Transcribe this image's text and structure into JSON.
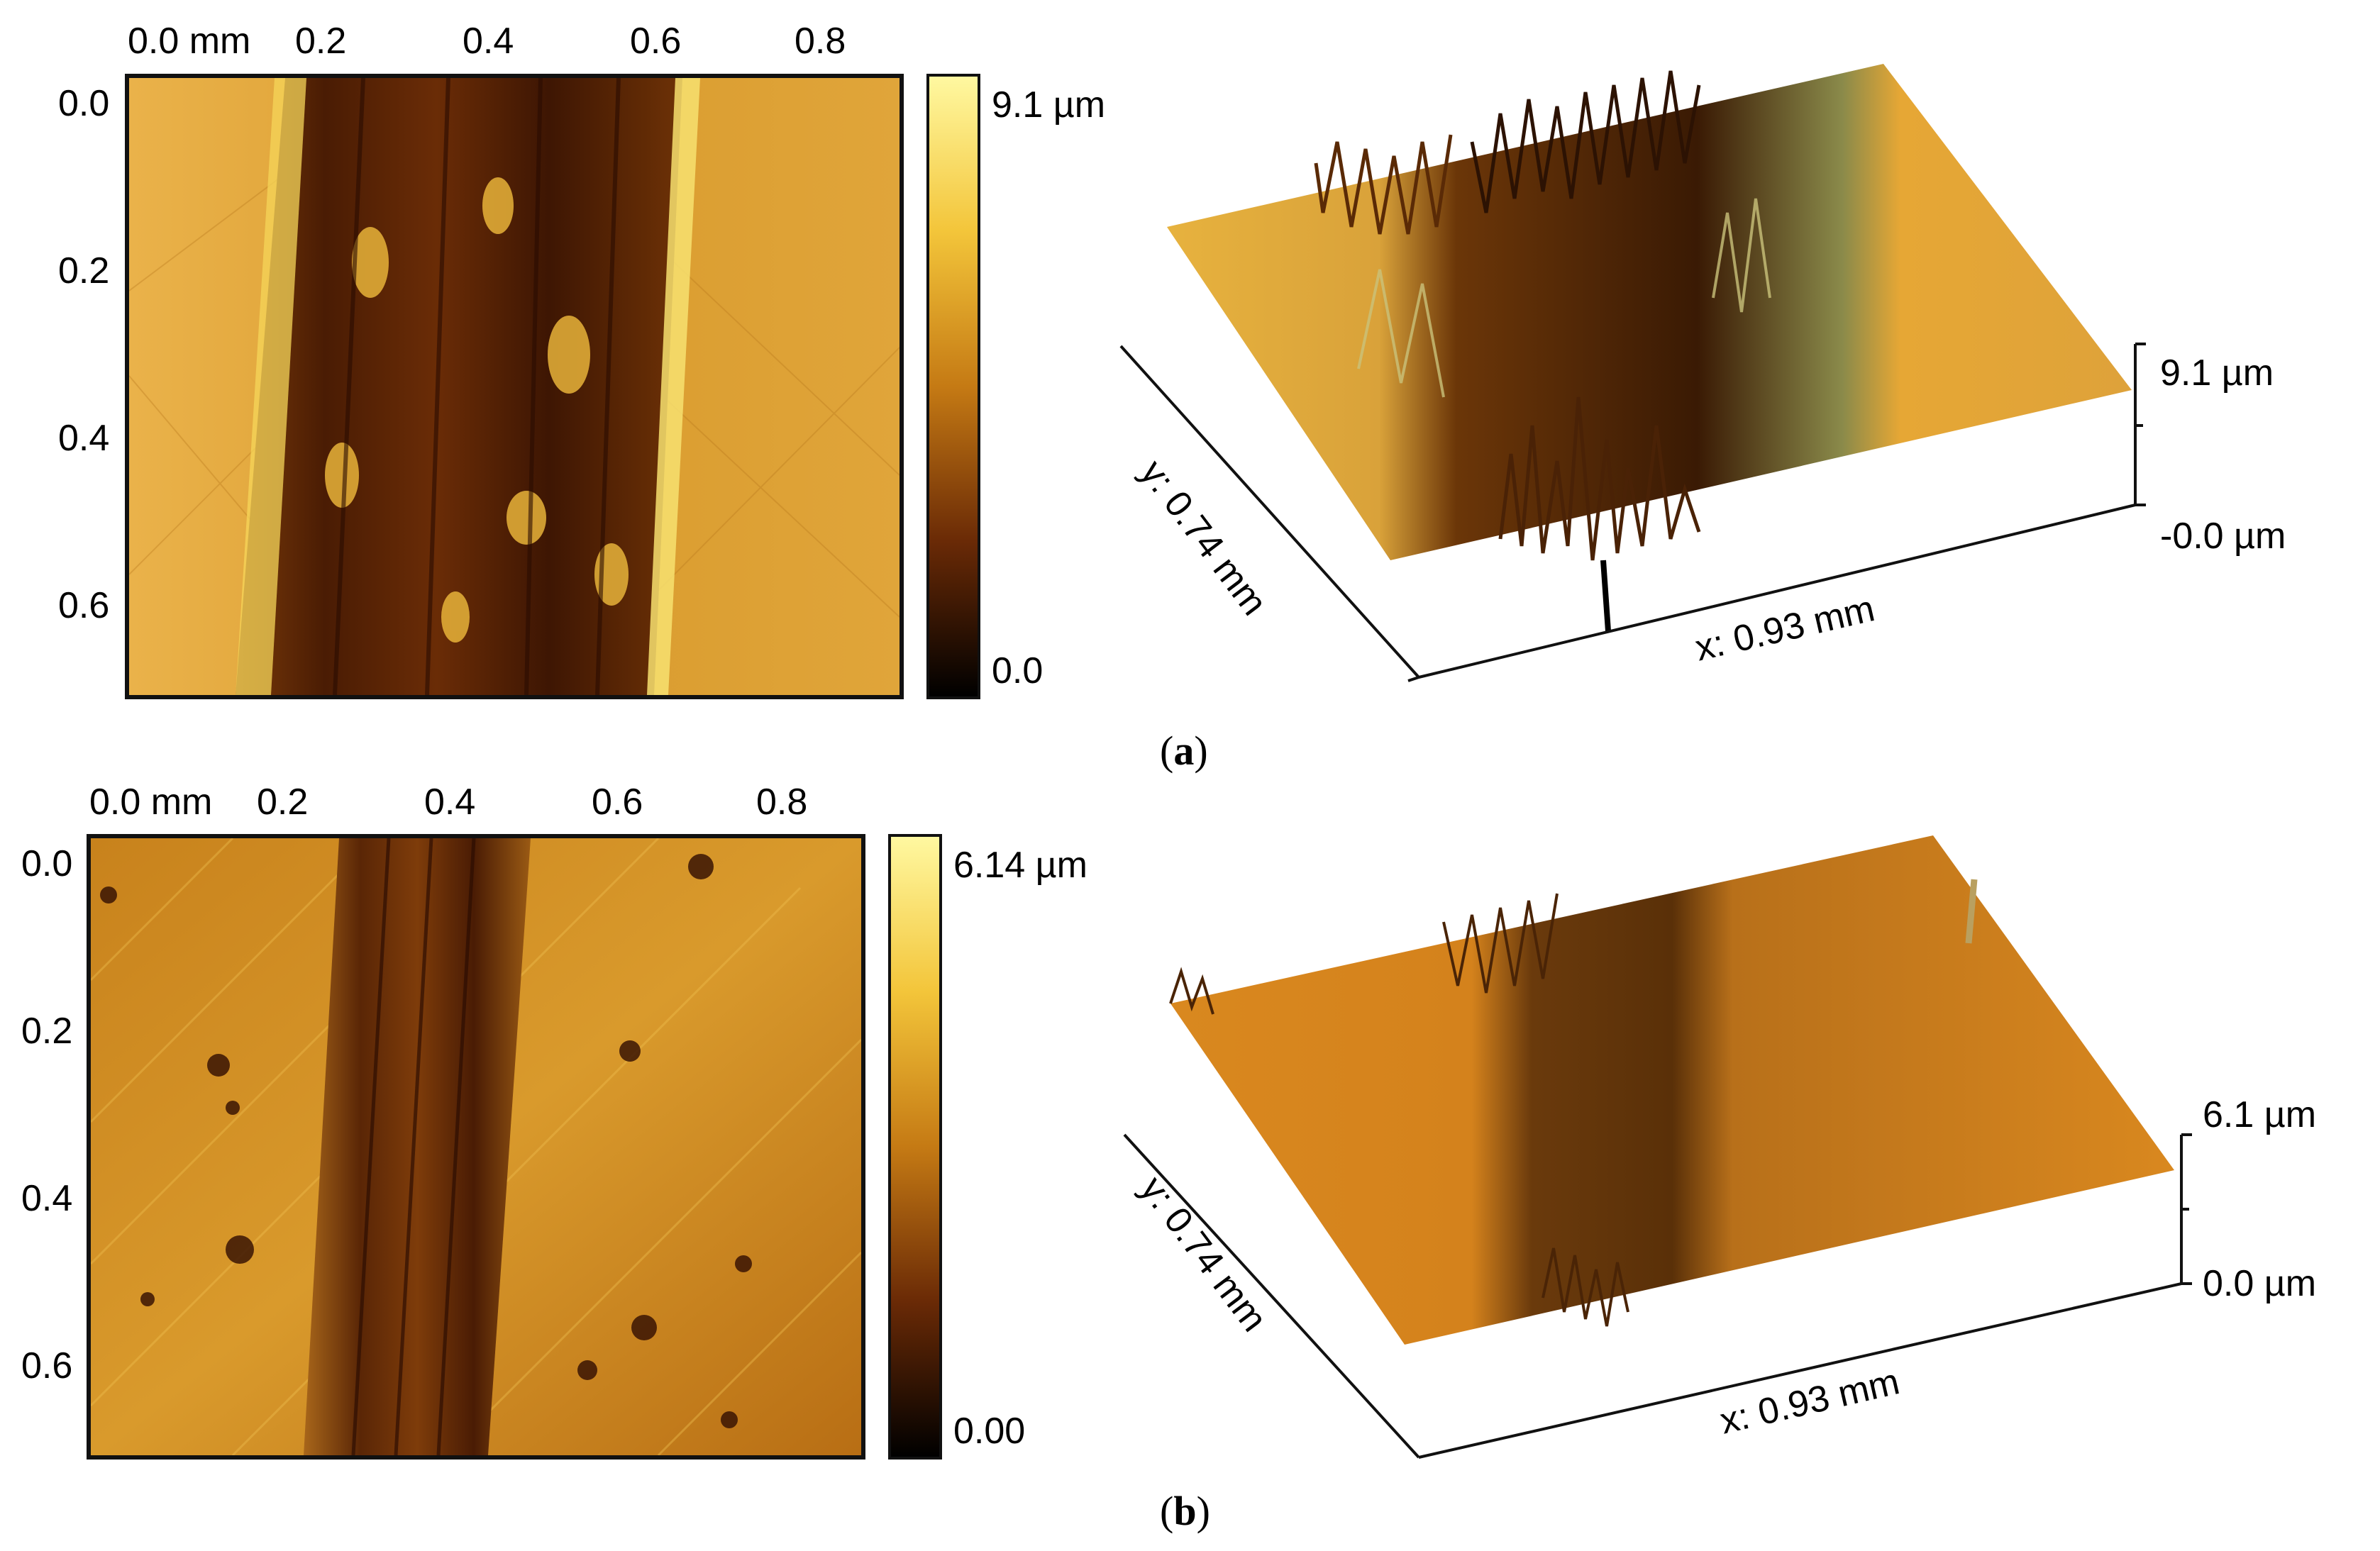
{
  "panels": [
    {
      "caption_letter": "a",
      "map2d": {
        "x_tick_labels": [
          "0.0 mm",
          "0.2",
          "0.4",
          "0.6",
          "0.8"
        ],
        "y_tick_labels": [
          "0.0",
          "0.2",
          "0.4",
          "0.6"
        ]
      },
      "colorbar": {
        "max_label": "9.1 µm",
        "min_label": "0.0"
      },
      "view3d": {
        "y_axis_label": "y: 0.74 mm",
        "x_axis_label": "x: 0.93 mm",
        "z_max_label": "9.1 µm",
        "z_min_label": "-0.0 µm"
      }
    },
    {
      "caption_letter": "b",
      "map2d": {
        "x_tick_labels": [
          "0.0 mm",
          "0.2",
          "0.4",
          "0.6",
          "0.8"
        ],
        "y_tick_labels": [
          "0.0",
          "0.2",
          "0.4",
          "0.6"
        ]
      },
      "colorbar": {
        "max_label": "6.14 µm",
        "min_label": "0.00"
      },
      "view3d": {
        "y_axis_label": "y: 0.74 mm",
        "x_axis_label": "x: 0.93 mm",
        "z_max_label": "6.1 µm",
        "z_min_label": "0.0 µm"
      }
    }
  ],
  "colors": {
    "colormap_low": "#000000",
    "colormap_mid": "#8a3a06",
    "colormap_high": "#fff8a0",
    "surface_a": "#e0a128",
    "surface_b": "#d9881f"
  }
}
